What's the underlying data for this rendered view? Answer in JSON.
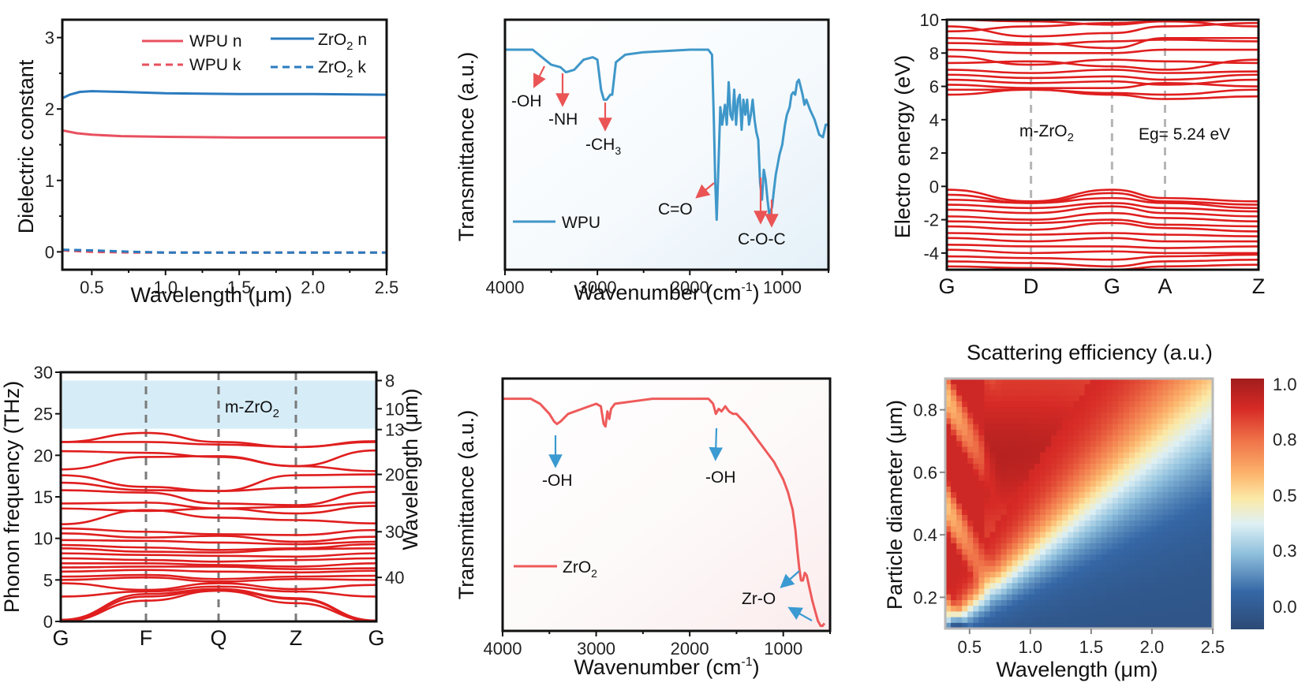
{
  "figure": {
    "panels": 6
  },
  "colors": {
    "wpu_red": "#e8505f",
    "zro2_blue": "#2a7bbf",
    "ftir_blue": "#3f97c9",
    "ftir_red": "#ee5a5a",
    "arrow_red": "#ea5455",
    "arrow_blue": "#3a9ad1",
    "band_red": "#e01e1e",
    "gap_shade": "#d6edf8"
  },
  "chart_data": [
    {
      "id": "dielectric",
      "type": "line",
      "title": "",
      "xlabel": "Wavelength (μm)",
      "ylabel": "Dielectric constant",
      "xlim": [
        0.3,
        2.5
      ],
      "ylim": [
        -0.25,
        3.25
      ],
      "xticks": [
        "0.5",
        "1.0",
        "1.5",
        "2.0",
        "2.5"
      ],
      "xtick_values": [
        0.5,
        1.0,
        1.5,
        2.0,
        2.5
      ],
      "yticks": [
        "0",
        "1",
        "2",
        "3"
      ],
      "ytick_values": [
        0,
        1,
        2,
        3
      ],
      "legend": {
        "placement": "top-right",
        "entries": [
          "WPU n",
          "WPU k",
          "ZrO2 n",
          "ZrO2 k"
        ]
      },
      "series": [
        {
          "name": "WPU n",
          "style": "solid",
          "color": "#e8505f",
          "x": [
            0.3,
            0.4,
            0.5,
            0.7,
            1.0,
            1.5,
            2.0,
            2.5
          ],
          "y": [
            1.7,
            1.66,
            1.64,
            1.62,
            1.61,
            1.6,
            1.6,
            1.6
          ]
        },
        {
          "name": "WPU k",
          "style": "dashed",
          "color": "#e8505f",
          "x": [
            0.3,
            0.5,
            0.8,
            1.0,
            2.5
          ],
          "y": [
            0.02,
            0.0,
            -0.01,
            -0.01,
            -0.01
          ]
        },
        {
          "name": "ZrO2 n",
          "style": "solid",
          "color": "#2a7bbf",
          "x": [
            0.3,
            0.35,
            0.42,
            0.5,
            0.7,
            1.0,
            1.5,
            2.0,
            2.5
          ],
          "y": [
            2.15,
            2.2,
            2.24,
            2.25,
            2.24,
            2.22,
            2.21,
            2.21,
            2.2
          ]
        },
        {
          "name": "ZrO2 k",
          "style": "dashed",
          "color": "#2a7bbf",
          "x": [
            0.3,
            0.5,
            0.8,
            1.0,
            2.5
          ],
          "y": [
            0.03,
            0.02,
            0.0,
            -0.01,
            -0.01
          ]
        }
      ]
    },
    {
      "id": "ftir-wpu",
      "type": "line",
      "xlabel": "Wavenumber (cm-1)",
      "xlabel_main": "Wavenumber (cm",
      "xlabel_sup": "-1",
      "xlabel_end": ")",
      "ylabel": "Transmittance (a.u.)",
      "xlim": [
        4000,
        500
      ],
      "ylim": [
        0,
        1
      ],
      "xticks": [
        "4000",
        "3000",
        "2000",
        "1000"
      ],
      "xtick_values": [
        4000,
        3000,
        2000,
        1000
      ],
      "legend": {
        "placement": "bottom-left",
        "entries": [
          "WPU"
        ]
      },
      "series": [
        {
          "name": "WPU",
          "color": "#3f97c9",
          "x": [
            4000,
            3700,
            3600,
            3500,
            3400,
            3340,
            3250,
            3150,
            3050,
            3000,
            2960,
            2930,
            2900,
            2860,
            2840,
            2800,
            2700,
            2500,
            2000,
            1800,
            1760,
            1740,
            1725,
            1710,
            1690,
            1670,
            1650,
            1620,
            1600,
            1580,
            1560,
            1540,
            1520,
            1500,
            1480,
            1460,
            1440,
            1420,
            1400,
            1380,
            1360,
            1340,
            1320,
            1300,
            1280,
            1260,
            1240,
            1220,
            1200,
            1180,
            1160,
            1140,
            1110,
            1090,
            1070,
            1050,
            1030,
            1000,
            970,
            950,
            920,
            900,
            880,
            860,
            840,
            820,
            800,
            780,
            760,
            740,
            700,
            650,
            600,
            560,
            530,
            500
          ],
          "y": [
            0.88,
            0.88,
            0.85,
            0.82,
            0.81,
            0.79,
            0.8,
            0.84,
            0.85,
            0.84,
            0.72,
            0.68,
            0.68,
            0.7,
            0.7,
            0.83,
            0.86,
            0.87,
            0.88,
            0.88,
            0.86,
            0.6,
            0.35,
            0.2,
            0.42,
            0.65,
            0.58,
            0.66,
            0.58,
            0.75,
            0.62,
            0.6,
            0.72,
            0.58,
            0.68,
            0.7,
            0.56,
            0.68,
            0.62,
            0.68,
            0.58,
            0.62,
            0.68,
            0.6,
            0.55,
            0.52,
            0.35,
            0.28,
            0.4,
            0.36,
            0.28,
            0.22,
            0.25,
            0.32,
            0.38,
            0.42,
            0.46,
            0.5,
            0.58,
            0.62,
            0.65,
            0.7,
            0.71,
            0.7,
            0.75,
            0.76,
            0.73,
            0.7,
            0.66,
            0.68,
            0.64,
            0.6,
            0.54,
            0.53,
            0.58,
            0.58
          ]
        }
      ],
      "annotations": [
        {
          "text": "-OH",
          "x": 3560,
          "color": "#ea5455"
        },
        {
          "text": "-NH",
          "x": 3340,
          "color": "#ea5455"
        },
        {
          "text": "-CH3",
          "x": 2885,
          "color": "#ea5455"
        },
        {
          "text": "C=O",
          "x": 1735,
          "color": "#ea5455"
        },
        {
          "text": "C-O-C",
          "x": 1230,
          "color": "#ea5455"
        },
        {
          "text": "C-O-C",
          "x": 1110,
          "color": "#ea5455"
        }
      ]
    },
    {
      "id": "band-structure",
      "type": "line",
      "xlabel": "",
      "ylabel": "Electro energy (eV)",
      "ylim": [
        -5,
        10
      ],
      "yticks": [
        "10",
        "8",
        "6",
        "4",
        "2",
        "0",
        "-2",
        "-4"
      ],
      "ytick_values": [
        10,
        8,
        6,
        4,
        2,
        0,
        -2,
        -4
      ],
      "kpoints": [
        "G",
        "D",
        "G",
        "A",
        "Z"
      ],
      "kpoint_positions": [
        0,
        0.27,
        0.53,
        0.7,
        1.0
      ],
      "annotations": [
        {
          "text": "m-ZrO2"
        },
        {
          "text": "Eg= 5.24 eV"
        }
      ],
      "band_gap_eV": 5.24,
      "conduction_band_min_eV": 5.24,
      "valence_band_max_eV": -0.2
    },
    {
      "id": "phonon",
      "type": "line",
      "ylabel": "Phonon frequency (THz)",
      "ylabel_right": "Wavelength (μm)",
      "ylim": [
        0,
        30
      ],
      "yticks": [
        "0",
        "5",
        "10",
        "15",
        "20",
        "25",
        "30"
      ],
      "ytick_values": [
        0,
        5,
        10,
        15,
        20,
        25,
        30
      ],
      "yticks_right": [
        "8",
        "10",
        "13",
        "20",
        "30",
        "40"
      ],
      "ytick_right_values_thz": [
        29,
        25.6,
        23.1,
        17.7,
        10.8,
        5.3
      ],
      "kpoints": [
        "G",
        "F",
        "Q",
        "Z",
        "G"
      ],
      "kpoint_positions": [
        0,
        0.27,
        0.5,
        0.745,
        1.0
      ],
      "shaded_region_thz": [
        23.2,
        29
      ],
      "annotations": [
        {
          "text": "m-ZrO2"
        }
      ]
    },
    {
      "id": "ftir-zro2",
      "type": "line",
      "xlabel": "Wavenumber (cm-1)",
      "xlabel_main": "Wavenumber (cm",
      "xlabel_sup": "-1",
      "xlabel_end": ")",
      "ylabel": "Transmittance (a.u.)",
      "xlim": [
        4000,
        500
      ],
      "ylim": [
        0,
        1
      ],
      "xticks": [
        "4000",
        "3000",
        "2000",
        "1000"
      ],
      "xtick_values": [
        4000,
        3000,
        2000,
        1000
      ],
      "legend": {
        "placement": "bottom-left",
        "entries": [
          "ZrO2"
        ]
      },
      "series": [
        {
          "name": "ZrO2",
          "color": "#ee5a5a",
          "x": [
            4000,
            3700,
            3600,
            3500,
            3450,
            3420,
            3380,
            3300,
            3150,
            3000,
            2950,
            2920,
            2900,
            2880,
            2860,
            2840,
            2800,
            2600,
            2400,
            2200,
            2000,
            1800,
            1750,
            1720,
            1690,
            1660,
            1620,
            1580,
            1540,
            1500,
            1450,
            1400,
            1300,
            1200,
            1100,
            1000,
            950,
            900,
            870,
            850,
            830,
            810,
            790,
            770,
            750,
            720,
            690,
            660,
            630,
            600,
            580,
            560
          ],
          "y": [
            0.92,
            0.92,
            0.9,
            0.86,
            0.83,
            0.82,
            0.83,
            0.86,
            0.88,
            0.9,
            0.89,
            0.82,
            0.81,
            0.87,
            0.84,
            0.88,
            0.9,
            0.91,
            0.92,
            0.92,
            0.92,
            0.92,
            0.9,
            0.86,
            0.88,
            0.87,
            0.89,
            0.87,
            0.86,
            0.86,
            0.84,
            0.82,
            0.77,
            0.72,
            0.67,
            0.6,
            0.55,
            0.48,
            0.4,
            0.32,
            0.25,
            0.2,
            0.2,
            0.23,
            0.22,
            0.17,
            0.12,
            0.08,
            0.04,
            0.02,
            0.02,
            0.03
          ]
        }
      ],
      "annotations": [
        {
          "text": "-OH",
          "x": 3440,
          "color": "#3a9ad1"
        },
        {
          "text": "-OH",
          "x": 1680,
          "color": "#3a9ad1"
        },
        {
          "text": "Zr-O",
          "x": 760,
          "color": "#3a9ad1"
        }
      ]
    },
    {
      "id": "scattering",
      "type": "heatmap",
      "title": "Scattering efficiency (a.u.)",
      "xlabel": "Wavelength (μm)",
      "ylabel": "Particle diameter (μm)",
      "xlim": [
        0.3,
        2.5
      ],
      "ylim": [
        0.1,
        0.9
      ],
      "xticks": [
        "0.5",
        "1.0",
        "1.5",
        "2.0",
        "2.5"
      ],
      "xtick_values": [
        0.5,
        1.0,
        1.5,
        2.0,
        2.5
      ],
      "yticks": [
        "0.2",
        "0.4",
        "0.6",
        "0.8"
      ],
      "ytick_values": [
        0.2,
        0.4,
        0.6,
        0.8
      ],
      "colorbar": {
        "ticks": [
          "1.0",
          "0.8",
          "0.5",
          "0.3",
          "0.0"
        ],
        "range": [
          0,
          1
        ],
        "colormap": "RdYlBu_r"
      },
      "description": "High efficiency (red) where diameter/wavelength ratio is large; decreases toward ~0 (dark blue) for long wavelengths and small diameters; transition ridge roughly along diameter ≈ 0.33 × wavelength."
    }
  ]
}
